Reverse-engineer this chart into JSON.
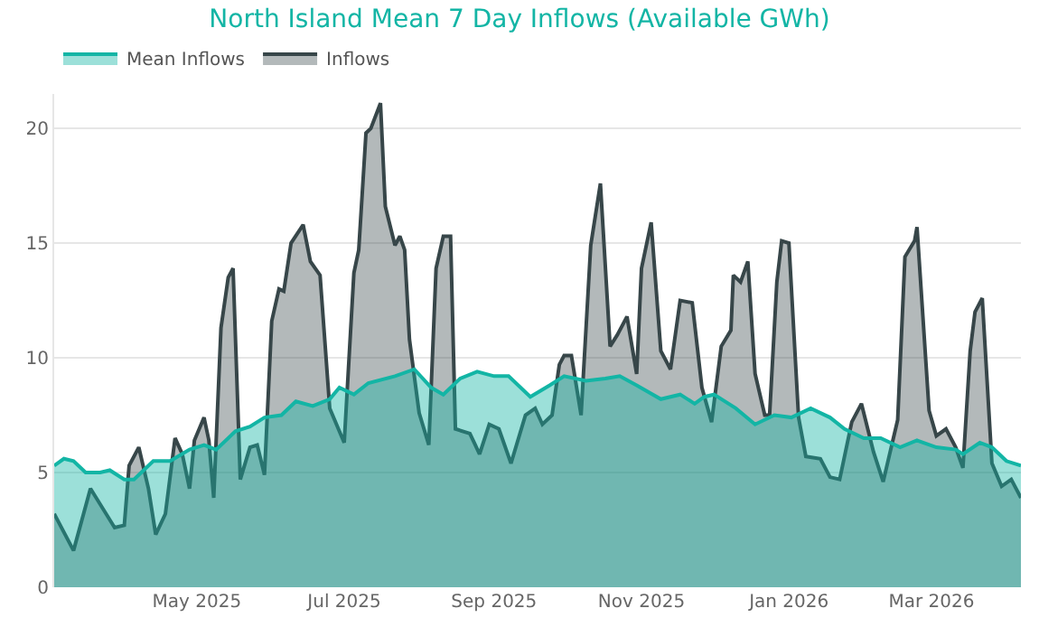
{
  "chart_data": {
    "type": "area",
    "title": "North Island Mean 7 Day Inflows (Available GWh)",
    "legend": "top left",
    "grid": "y",
    "ylim": [
      0,
      21.5
    ],
    "yticks": [
      0,
      5,
      10,
      15,
      20
    ],
    "xlim": [
      "2025-03-03",
      "2026-04-07"
    ],
    "xticks": [
      {
        "value": "2025-05-01",
        "label": "May 2025"
      },
      {
        "value": "2025-07-01",
        "label": "Jul 2025"
      },
      {
        "value": "2025-09-01",
        "label": "Sep 2025"
      },
      {
        "value": "2025-11-01",
        "label": "Nov 2025"
      },
      {
        "value": "2026-01-01",
        "label": "Jan 2026"
      },
      {
        "value": "2026-03-01",
        "label": "Mar 2026"
      }
    ],
    "series": [
      {
        "name": "Mean Inflows",
        "color": "#13b5a5",
        "x": [
          "2025-03-03",
          "2025-03-07",
          "2025-03-11",
          "2025-03-16",
          "2025-03-22",
          "2025-03-26",
          "2025-04-01",
          "2025-04-05",
          "2025-04-13",
          "2025-04-20",
          "2025-04-28",
          "2025-05-04",
          "2025-05-09",
          "2025-05-17",
          "2025-05-23",
          "2025-05-29",
          "2025-06-05",
          "2025-06-11",
          "2025-06-18",
          "2025-06-25",
          "2025-06-29",
          "2025-07-05",
          "2025-07-11",
          "2025-07-22",
          "2025-07-30",
          "2025-08-06",
          "2025-08-11",
          "2025-08-18",
          "2025-08-25",
          "2025-09-01",
          "2025-09-07",
          "2025-09-16",
          "2025-09-24",
          "2025-09-30",
          "2025-10-09",
          "2025-10-17",
          "2025-10-23",
          "2025-10-30",
          "2025-11-09",
          "2025-11-17",
          "2025-11-23",
          "2025-11-27",
          "2025-12-01",
          "2025-12-10",
          "2025-12-18",
          "2025-12-26",
          "2026-01-02",
          "2026-01-10",
          "2026-01-18",
          "2026-01-24",
          "2026-02-01",
          "2026-02-08",
          "2026-02-16",
          "2026-02-23",
          "2026-03-03",
          "2026-03-11",
          "2026-03-14",
          "2026-03-21",
          "2026-03-26",
          "2026-04-01",
          "2026-04-07"
        ],
        "values": [
          5.3,
          5.6,
          5.5,
          5.0,
          5.0,
          5.1,
          4.7,
          4.7,
          5.5,
          5.5,
          6.0,
          6.2,
          6.0,
          6.8,
          7.0,
          7.4,
          7.5,
          8.1,
          7.9,
          8.2,
          8.7,
          8.4,
          8.9,
          9.2,
          9.5,
          8.7,
          8.4,
          9.1,
          9.4,
          9.2,
          9.2,
          8.3,
          8.8,
          9.2,
          9.0,
          9.1,
          9.2,
          8.8,
          8.2,
          8.4,
          8.0,
          8.3,
          8.4,
          7.8,
          7.1,
          7.5,
          7.4,
          7.8,
          7.4,
          6.9,
          6.5,
          6.5,
          6.1,
          6.4,
          6.1,
          6.0,
          5.8,
          6.3,
          6.1,
          5.5,
          5.3
        ]
      },
      {
        "name": "Inflows",
        "color": "#374649",
        "x": [
          "2025-03-03",
          "2025-03-11",
          "2025-03-18",
          "2025-03-28",
          "2025-04-01",
          "2025-04-03",
          "2025-04-07",
          "2025-04-11",
          "2025-04-14",
          "2025-04-18",
          "2025-04-22",
          "2025-04-25",
          "2025-04-28",
          "2025-04-30",
          "2025-05-04",
          "2025-05-06",
          "2025-05-08",
          "2025-05-11",
          "2025-05-14",
          "2025-05-16",
          "2025-05-19",
          "2025-05-23",
          "2025-05-26",
          "2025-05-29",
          "2025-06-01",
          "2025-06-04",
          "2025-06-06",
          "2025-06-09",
          "2025-06-14",
          "2025-06-17",
          "2025-06-21",
          "2025-06-25",
          "2025-07-01",
          "2025-07-05",
          "2025-07-07",
          "2025-07-10",
          "2025-07-12",
          "2025-07-16",
          "2025-07-18",
          "2025-07-22",
          "2025-07-24",
          "2025-07-26",
          "2025-07-28",
          "2025-08-01",
          "2025-08-05",
          "2025-08-08",
          "2025-08-11",
          "2025-08-14",
          "2025-08-16",
          "2025-08-22",
          "2025-08-26",
          "2025-08-30",
          "2025-09-03",
          "2025-09-08",
          "2025-09-14",
          "2025-09-18",
          "2025-09-21",
          "2025-09-25",
          "2025-09-28",
          "2025-09-30",
          "2025-10-03",
          "2025-10-07",
          "2025-10-11",
          "2025-10-15",
          "2025-10-19",
          "2025-10-22",
          "2025-10-26",
          "2025-10-30",
          "2025-11-01",
          "2025-11-05",
          "2025-11-09",
          "2025-11-13",
          "2025-11-17",
          "2025-11-22",
          "2025-11-26",
          "2025-11-30",
          "2025-12-04",
          "2025-12-08",
          "2025-12-09",
          "2025-12-12",
          "2025-12-15",
          "2025-12-18",
          "2025-12-22",
          "2025-12-24",
          "2025-12-27",
          "2025-12-29",
          "2026-01-01",
          "2026-01-05",
          "2026-01-08",
          "2026-01-14",
          "2026-01-18",
          "2026-01-22",
          "2026-01-27",
          "2026-01-31",
          "2026-02-05",
          "2026-02-09",
          "2026-02-15",
          "2026-02-18",
          "2026-02-22",
          "2026-02-23",
          "2026-02-28",
          "2026-03-03",
          "2026-03-07",
          "2026-03-11",
          "2026-03-14",
          "2026-03-17",
          "2026-03-19",
          "2026-03-22",
          "2026-03-26",
          "2026-03-30",
          "2026-04-03",
          "2026-04-07"
        ],
        "values": [
          3.2,
          1.6,
          4.3,
          2.6,
          2.7,
          5.3,
          6.1,
          4.3,
          2.3,
          3.2,
          6.5,
          5.8,
          4.3,
          6.4,
          7.4,
          6.4,
          3.9,
          11.3,
          13.5,
          13.9,
          4.7,
          6.1,
          6.2,
          4.9,
          11.6,
          13.0,
          12.9,
          15.0,
          15.8,
          14.2,
          13.6,
          7.8,
          6.3,
          13.7,
          14.7,
          19.8,
          20.0,
          21.1,
          16.6,
          14.9,
          15.3,
          14.7,
          10.8,
          7.6,
          6.2,
          13.9,
          15.3,
          15.3,
          6.9,
          6.7,
          5.8,
          7.1,
          6.9,
          5.4,
          7.5,
          7.8,
          7.1,
          7.5,
          9.7,
          10.1,
          10.1,
          7.5,
          14.9,
          17.6,
          10.5,
          11.0,
          11.8,
          9.3,
          13.9,
          15.9,
          10.3,
          9.5,
          12.5,
          12.4,
          8.7,
          7.2,
          10.5,
          11.2,
          13.6,
          13.3,
          14.2,
          9.3,
          7.5,
          7.5,
          13.3,
          15.1,
          15.0,
          7.4,
          5.7,
          5.6,
          4.8,
          4.7,
          7.2,
          8.0,
          5.9,
          4.6,
          7.3,
          14.4,
          15.1,
          15.7,
          7.7,
          6.6,
          6.9,
          6.1,
          5.2,
          10.3,
          12.0,
          12.6,
          5.4,
          4.4,
          4.7,
          3.9
        ]
      }
    ]
  }
}
